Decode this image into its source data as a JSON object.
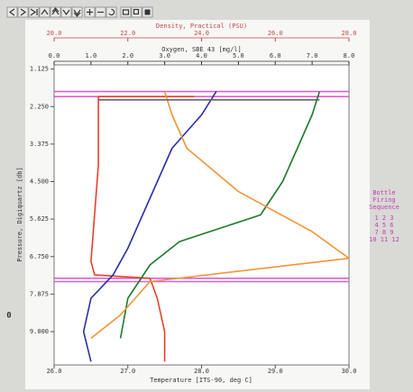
{
  "chart_data": {
    "type": "line",
    "grid": false,
    "xlabel": "Temperature [ITS-90, deg C]",
    "xlim": [
      26.0,
      30.0
    ],
    "xticks": [
      {
        "value": 26,
        "label": "26.0"
      },
      {
        "value": 27,
        "label": "27.0"
      },
      {
        "value": 28,
        "label": "28.0"
      },
      {
        "value": 29,
        "label": "29.0"
      },
      {
        "value": 30,
        "label": "30.0"
      }
    ],
    "ylabel": "Pressure, Digiquartz [db]",
    "ylim": [
      1.0,
      10.0
    ],
    "y_inverted": true,
    "yticks": [
      1.125,
      {
        "value": 2.25,
        "label": "2.250"
      },
      3.375,
      {
        "value": 4.5,
        "label": "4.500"
      },
      5.625,
      {
        "value": 6.75,
        "label": "6.750"
      },
      7.875,
      {
        "value": 9,
        "label": "9.000"
      }
    ],
    "top_axes": [
      {
        "label": "Density, Practical (PSU)",
        "color": "#c24848",
        "xlim": [
          20.0,
          28.0
        ],
        "xticks": [
          {
            "value": 20,
            "label": "20.0"
          },
          {
            "value": 22,
            "label": "22.0"
          },
          {
            "value": 24,
            "label": "24.0"
          },
          {
            "value": 26,
            "label": "26.0"
          },
          {
            "value": 28,
            "label": "28.0"
          }
        ]
      },
      {
        "label": "Oxygen, SBE 43 [mg/l]",
        "color": "#333333",
        "xlim": [
          0.0,
          8.0
        ],
        "xticks": [
          {
            "value": 0,
            "label": "0.0"
          },
          {
            "value": 1,
            "label": "1.0"
          },
          {
            "value": 2,
            "label": "2.0"
          },
          {
            "value": 3,
            "label": "3.0"
          },
          {
            "value": 4,
            "label": "4.0"
          },
          {
            "value": 5,
            "label": "5.0"
          },
          {
            "value": 6,
            "label": "6.0"
          },
          {
            "value": 7,
            "label": "7.0"
          },
          {
            "value": 8,
            "label": "8.0"
          }
        ]
      }
    ],
    "series": [
      {
        "color": "#e8402a",
        "x": [
          27.9,
          26.6,
          26.6,
          26.5,
          26.55,
          27.3,
          27.4,
          27.5,
          27.5
        ],
        "values": [
          1.95,
          1.95,
          4.0,
          6.9,
          7.3,
          7.4,
          8.0,
          9.0,
          9.9
        ]
      },
      {
        "color": "#2a2fa8",
        "x": [
          28.2,
          28.0,
          27.6,
          27.3,
          27.0,
          26.8,
          26.5,
          26.4,
          26.5
        ],
        "values": [
          1.8,
          2.5,
          3.5,
          5.0,
          6.5,
          7.3,
          8.0,
          9.0,
          9.9
        ]
      },
      {
        "color": "#1e7a2e",
        "x": [
          29.6,
          29.5,
          29.3,
          29.1,
          28.8,
          27.7,
          27.3,
          27.0,
          26.9
        ],
        "values": [
          1.8,
          2.5,
          3.5,
          4.5,
          5.5,
          6.3,
          7.0,
          8.0,
          9.2
        ]
      },
      {
        "color": "#f0953a",
        "x": [
          27.5,
          27.6,
          27.8,
          28.5,
          29.5,
          30.0,
          27.3,
          26.9,
          26.5
        ],
        "values": [
          1.8,
          2.5,
          3.5,
          4.8,
          6.0,
          6.8,
          7.5,
          8.5,
          9.2
        ]
      },
      {
        "color": "#666666",
        "x": [
          26.6,
          29.6
        ],
        "values": [
          2.05,
          2.05
        ]
      }
    ],
    "hlines": {
      "color": "#d845c8",
      "values": [
        1.8,
        1.95,
        7.4,
        7.5
      ]
    },
    "legend_box": {
      "color": "#c040b0",
      "title_lines": [
        "Bottle",
        "Firing",
        "Sequence"
      ],
      "rows": [
        "1  2  3",
        "4  5  6",
        "7  8  9",
        "10 11 12"
      ]
    },
    "stray_label": "0"
  }
}
